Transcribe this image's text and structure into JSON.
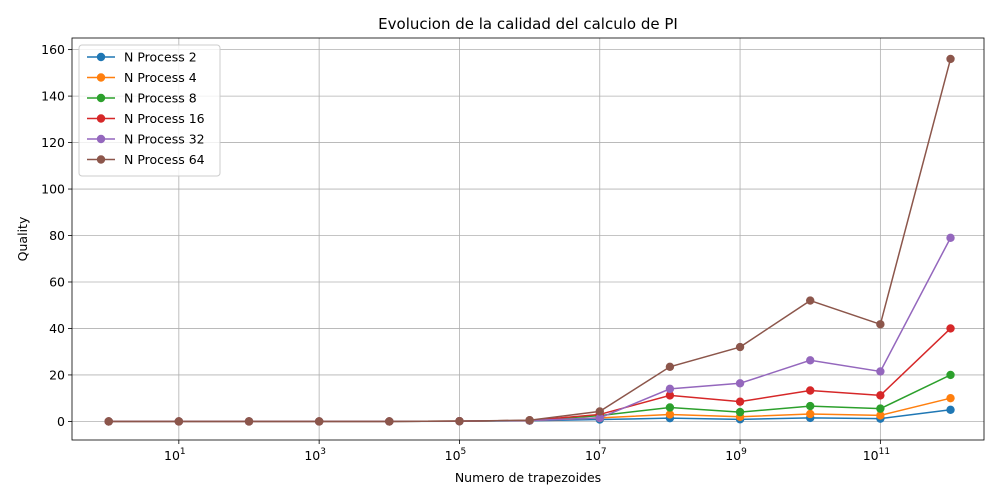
{
  "chart_data": {
    "type": "line",
    "title": "Evolucion de la calidad del calculo de PI",
    "xlabel": "Numero de trapezoides",
    "ylabel": "Quality",
    "xscale": "log",
    "xlim": [
      0.3,
      3000000000000.0
    ],
    "ylim": [
      -8,
      165
    ],
    "grid": true,
    "legend_position": "top-left",
    "x": [
      1,
      10,
      100,
      1000,
      10000,
      100000,
      1000000,
      10000000,
      100000000,
      1000000000,
      10000000000,
      100000000000,
      1000000000000
    ],
    "x_ticks": [
      {
        "value": 10,
        "base": "10",
        "exp": "1"
      },
      {
        "value": 1000,
        "base": "10",
        "exp": "3"
      },
      {
        "value": 100000,
        "base": "10",
        "exp": "5"
      },
      {
        "value": 10000000,
        "base": "10",
        "exp": "7"
      },
      {
        "value": 1000000000,
        "base": "10",
        "exp": "9"
      },
      {
        "value": 100000000000,
        "base": "10",
        "exp": "11"
      }
    ],
    "y_ticks": [
      0,
      20,
      40,
      60,
      80,
      100,
      120,
      140,
      160
    ],
    "series": [
      {
        "name": "N Process 2",
        "color": "#1f77b4",
        "values": [
          0,
          0,
          0,
          0,
          0,
          0.05,
          0.3,
          0.8,
          1.4,
          0.9,
          1.5,
          1.2,
          5
        ]
      },
      {
        "name": "N Process 4",
        "color": "#ff7f0e",
        "values": [
          0,
          0,
          0,
          0,
          0,
          0.1,
          0.4,
          1.5,
          3.0,
          2.0,
          3.2,
          2.6,
          10
        ]
      },
      {
        "name": "N Process 8",
        "color": "#2ca02c",
        "values": [
          0,
          0,
          0,
          0,
          0,
          0.1,
          0.4,
          2.5,
          6.0,
          4.0,
          6.6,
          5.5,
          20
        ]
      },
      {
        "name": "N Process 16",
        "color": "#d62728",
        "values": [
          0,
          0,
          0,
          0,
          0,
          0.1,
          0.4,
          3.0,
          11.2,
          8.5,
          13.3,
          11.2,
          40
        ]
      },
      {
        "name": "N Process 32",
        "color": "#9467bd",
        "values": [
          0,
          0,
          0,
          0,
          0,
          0.1,
          0.4,
          1.5,
          14.0,
          16.4,
          26.3,
          21.5,
          79
        ]
      },
      {
        "name": "N Process 64",
        "color": "#8c564b",
        "values": [
          0,
          0,
          0,
          0,
          0,
          0.1,
          0.5,
          4.3,
          23.5,
          32.0,
          52.0,
          41.8,
          156
        ]
      }
    ]
  }
}
